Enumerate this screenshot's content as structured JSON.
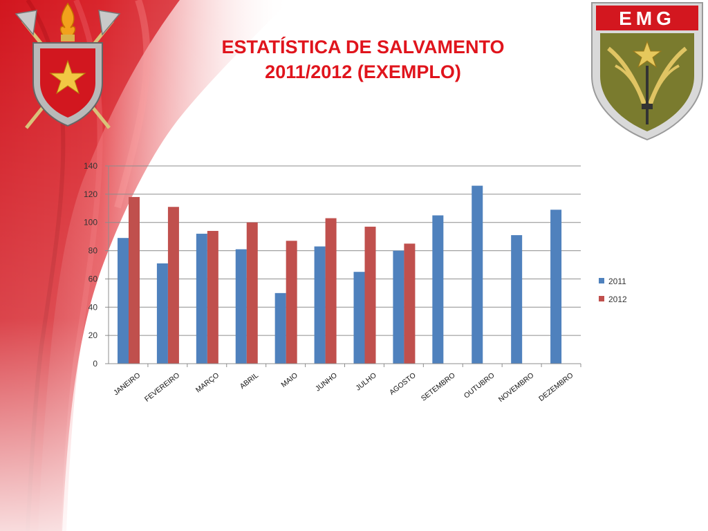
{
  "title": {
    "line1": "ESTATÍSTICA DE SALVAMENTO",
    "line2": "2011/2012 (EXEMPLO)"
  },
  "logos": {
    "left": {
      "icon": "firefighter-coat-of-arms-icon"
    },
    "right": {
      "icon": "emg-shield-icon",
      "text": "EMG"
    }
  },
  "colors": {
    "accent": "#e0141c",
    "series_2011": "#4f81bd",
    "series_2012": "#c0504d"
  },
  "chart_data": {
    "type": "bar",
    "categories": [
      "JANEIRO",
      "FEVEREIRO",
      "MARÇO",
      "ABRIL",
      "MAIO",
      "JUNHO",
      "JULHO",
      "AGOSTO",
      "SETEMBRO",
      "OUTUBRO",
      "NOVEMBRO",
      "DEZEMBRO"
    ],
    "series": [
      {
        "name": "2011",
        "color": "#4f81bd",
        "values": [
          89,
          71,
          92,
          81,
          50,
          83,
          65,
          80,
          105,
          126,
          91,
          109
        ]
      },
      {
        "name": "2012",
        "color": "#c0504d",
        "values": [
          118,
          111,
          94,
          100,
          87,
          103,
          97,
          85,
          null,
          null,
          null,
          null
        ]
      }
    ],
    "ylim": [
      0,
      140
    ],
    "yticks": [
      0,
      20,
      40,
      60,
      80,
      100,
      120,
      140
    ],
    "grid": true,
    "legend": "right"
  }
}
